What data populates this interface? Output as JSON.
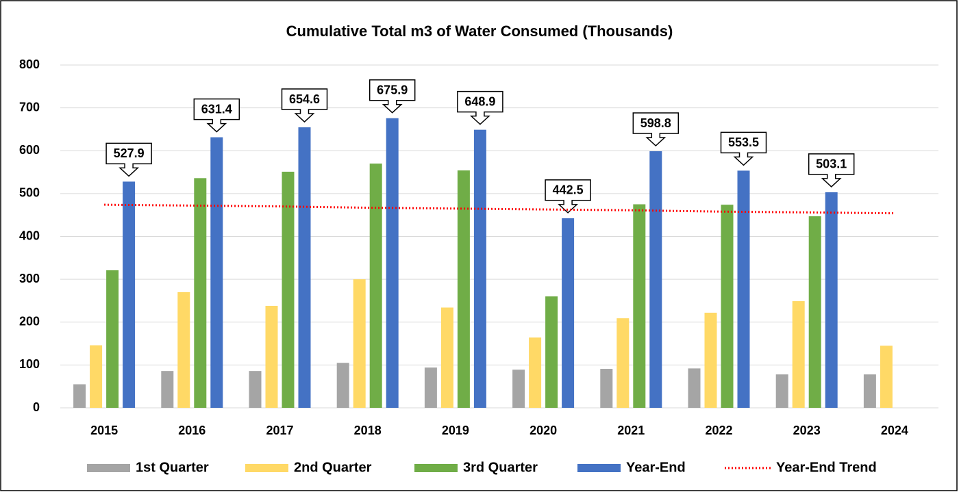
{
  "chart_data": {
    "type": "bar",
    "title": "Cumulative Total m3 of Water Consumed (Thousands)",
    "categories": [
      "2015",
      "2016",
      "2017",
      "2018",
      "2019",
      "2020",
      "2021",
      "2022",
      "2023",
      "2024"
    ],
    "series": [
      {
        "name": "1st Quarter",
        "color": "#a5a5a5",
        "values": [
          55,
          86,
          86,
          105,
          94,
          89,
          91,
          92,
          78,
          78
        ]
      },
      {
        "name": "2nd Quarter",
        "color": "#ffd966",
        "values": [
          146,
          270,
          238,
          300,
          234,
          164,
          209,
          222,
          249,
          145
        ]
      },
      {
        "name": "3rd Quarter",
        "color": "#70ad47",
        "values": [
          321,
          536,
          551,
          570,
          554,
          260,
          475,
          474,
          447,
          null
        ]
      },
      {
        "name": "Year-End",
        "color": "#4472c4",
        "values": [
          527.9,
          631.4,
          654.6,
          675.9,
          648.9,
          442.5,
          598.8,
          553.5,
          503.1,
          null
        ],
        "data_labels": true
      },
      {
        "name": "Year-End Trend",
        "color": "#ff0000",
        "type": "line",
        "values": [
          474,
          472,
          470,
          467,
          465,
          463,
          461,
          458,
          456,
          454
        ]
      }
    ],
    "ylim": [
      0,
      800
    ],
    "yticks": [
      0,
      100,
      200,
      300,
      400,
      500,
      600,
      700,
      800
    ],
    "grid": true,
    "legend": "bottom"
  }
}
